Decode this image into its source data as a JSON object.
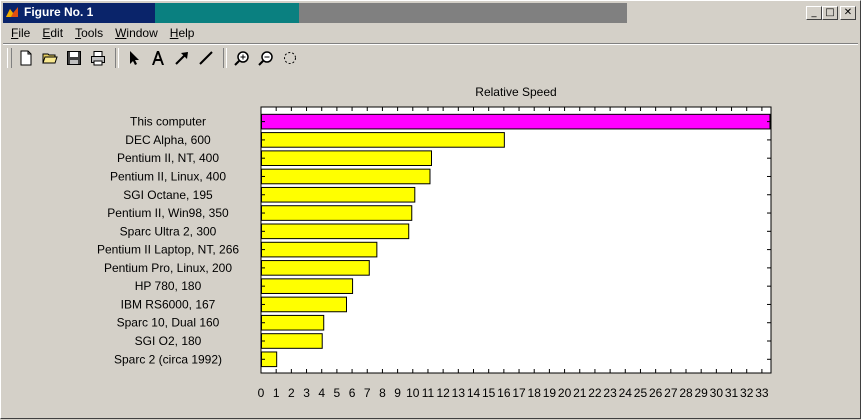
{
  "window": {
    "title": "Figure No. 1",
    "controls": {
      "minimize": "_",
      "maximize": "□",
      "close": "✕"
    }
  },
  "menu": [
    {
      "label": "File",
      "key": "F",
      "rest": "ile"
    },
    {
      "label": "Edit",
      "key": "E",
      "rest": "dit"
    },
    {
      "label": "Tools",
      "key": "T",
      "rest": "ools"
    },
    {
      "label": "Window",
      "key": "W",
      "rest": "indow"
    },
    {
      "label": "Help",
      "key": "H",
      "rest": "elp"
    }
  ],
  "toolbar": {
    "icons": [
      "new-file-icon",
      "open-folder-icon",
      "save-icon",
      "print-icon",
      "select-arrow-icon",
      "insert-text-icon",
      "insert-arrow-icon",
      "insert-line-icon",
      "zoom-in-icon",
      "zoom-out-icon",
      "rotate-icon"
    ]
  },
  "colors": {
    "highlight": "#ff00ff",
    "bars": "#ffff00"
  },
  "chart_data": {
    "type": "bar",
    "orientation": "horizontal",
    "title": "Relative Speed",
    "categories": [
      "This computer",
      "DEC Alpha, 600",
      "Pentium II, NT, 400",
      "Pentium II, Linux, 400",
      "SGI Octane, 195",
      "Pentium II, Win98, 350",
      "Sparc Ultra 2, 300",
      "Pentium II Laptop, NT, 266",
      "Pentium Pro, Linux, 200",
      "HP 780, 180",
      "IBM RS6000, 167",
      "Sparc 10, Dual 160",
      "SGI O2, 180",
      "Sparc 2 (circa 1992)"
    ],
    "values": [
      33.5,
      16,
      11.2,
      11.1,
      10.1,
      9.9,
      9.7,
      7.6,
      7.1,
      6.0,
      5.6,
      4.1,
      4.0,
      1.0
    ],
    "xlim": [
      0,
      33.6
    ],
    "xticks": [
      0,
      1,
      2,
      3,
      4,
      5,
      6,
      7,
      8,
      9,
      10,
      11,
      12,
      13,
      14,
      15,
      16,
      17,
      18,
      19,
      20,
      21,
      22,
      23,
      24,
      25,
      26,
      27,
      28,
      29,
      30,
      31,
      32,
      33
    ],
    "grid": false
  }
}
